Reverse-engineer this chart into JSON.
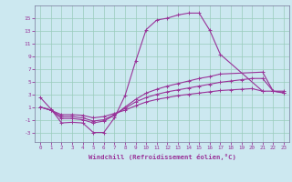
{
  "xlabel": "Windchill (Refroidissement éolien,°C)",
  "background_color": "#cce8f0",
  "grid_color": "#99ccbb",
  "line_color": "#993399",
  "ylim": [
    -4.5,
    17
  ],
  "xlim": [
    -0.5,
    23.5
  ],
  "yticks": [
    -3,
    -1,
    1,
    3,
    5,
    7,
    9,
    11,
    13,
    15
  ],
  "xticks": [
    0,
    1,
    2,
    3,
    4,
    5,
    6,
    7,
    8,
    9,
    10,
    11,
    12,
    13,
    14,
    15,
    16,
    17,
    18,
    19,
    20,
    21,
    22,
    23
  ],
  "series": [
    {
      "x": [
        0,
        1,
        2,
        3,
        4,
        5,
        6,
        7,
        8,
        9,
        10,
        11,
        12,
        13,
        14,
        15,
        16,
        17,
        21
      ],
      "y": [
        2.5,
        0.7,
        -1.5,
        -1.4,
        -1.5,
        -3.0,
        -3.0,
        -0.7,
        2.8,
        8.2,
        13.2,
        14.7,
        15.0,
        15.5,
        15.8,
        15.8,
        13.1,
        9.3,
        3.5
      ]
    },
    {
      "x": [
        0,
        1,
        2,
        3,
        4,
        5,
        6,
        7,
        8,
        9,
        10,
        11,
        12,
        13,
        14,
        15,
        16,
        17,
        21,
        22,
        23
      ],
      "y": [
        1.0,
        0.5,
        -0.8,
        -0.8,
        -1.0,
        -1.5,
        -1.2,
        -0.3,
        1.0,
        2.2,
        3.2,
        3.8,
        4.3,
        4.7,
        5.1,
        5.5,
        5.8,
        6.2,
        6.5,
        3.5,
        3.5
      ]
    },
    {
      "x": [
        0,
        1,
        2,
        3,
        4,
        5,
        6,
        7,
        8,
        9,
        10,
        11,
        12,
        13,
        14,
        15,
        16,
        17,
        18,
        19,
        20,
        21,
        22,
        23
      ],
      "y": [
        1.0,
        0.5,
        -0.5,
        -0.5,
        -0.7,
        -1.2,
        -1.0,
        -0.2,
        0.8,
        1.8,
        2.5,
        3.0,
        3.4,
        3.7,
        4.0,
        4.3,
        4.6,
        4.9,
        5.1,
        5.3,
        5.5,
        5.5,
        3.5,
        3.3
      ]
    },
    {
      "x": [
        0,
        1,
        2,
        3,
        4,
        5,
        6,
        7,
        8,
        9,
        10,
        11,
        12,
        13,
        14,
        15,
        16,
        17,
        18,
        19,
        20,
        21,
        22,
        23
      ],
      "y": [
        1.0,
        0.5,
        -0.2,
        -0.2,
        -0.3,
        -0.7,
        -0.5,
        0.0,
        0.5,
        1.2,
        1.8,
        2.2,
        2.5,
        2.8,
        3.0,
        3.2,
        3.4,
        3.6,
        3.7,
        3.8,
        3.9,
        3.5,
        3.5,
        3.2
      ]
    }
  ]
}
